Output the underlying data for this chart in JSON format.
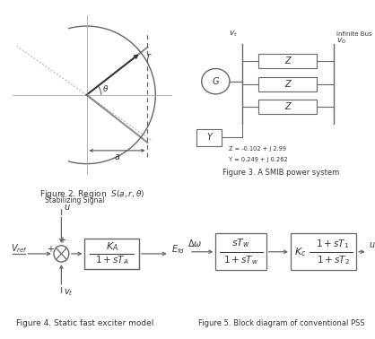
{
  "fig_width": 4.18,
  "fig_height": 3.78,
  "dpi": 100,
  "bg_color": "#ffffff",
  "text_color": "#333333",
  "line_color": "#666666",
  "fig2_title": "Figure 2. Region  $S(a,r,\\theta)$",
  "fig3_title": "Figure 3. A SMIB power system",
  "fig4_title": "Figure 4. Static fast exciter model",
  "fig5_title": "Figure 5. Block diagram of conventional PSS"
}
